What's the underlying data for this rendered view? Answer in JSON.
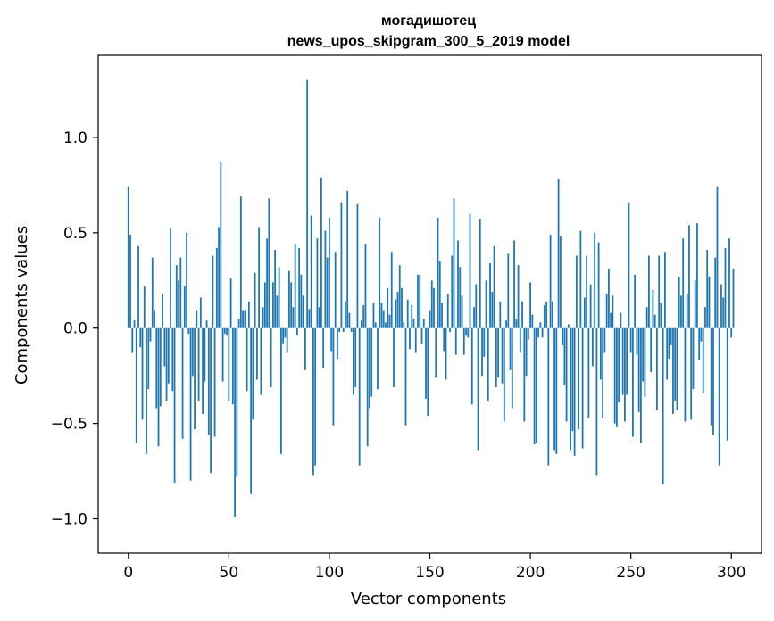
{
  "chart_data": {
    "type": "bar",
    "title": "могадишотец",
    "subtitle": "news_upos_skipgram_300_5_2019 model",
    "xlabel": "Vector components",
    "ylabel": "Components values",
    "xlim": [
      -15,
      315
    ],
    "ylim": [
      -1.18,
      1.43
    ],
    "xticks": [
      0,
      50,
      100,
      150,
      200,
      250,
      300
    ],
    "xtick_labels": [
      "0",
      "50",
      "100",
      "150",
      "200",
      "250",
      "300"
    ],
    "yticks": [
      -1.0,
      -0.5,
      0.0,
      0.5,
      1.0
    ],
    "ytick_labels": [
      "−1.0",
      "−0.5",
      "0.0",
      "0.5",
      "1.0"
    ],
    "grid": false,
    "bar_color": "#1f77b4",
    "values": [
      0.74,
      0.49,
      -0.13,
      0.04,
      -0.6,
      0.43,
      -0.1,
      -0.48,
      0.22,
      -0.66,
      -0.32,
      -0.07,
      0.37,
      0.09,
      -0.42,
      -0.62,
      -0.41,
      0.18,
      -0.2,
      -0.38,
      -0.29,
      0.52,
      -0.33,
      -0.81,
      0.33,
      0.25,
      0.37,
      -0.58,
      0.22,
      0.5,
      -0.03,
      -0.8,
      -0.25,
      -0.53,
      0.09,
      -0.38,
      0.16,
      -0.45,
      -0.28,
      0.04,
      -0.56,
      -0.76,
      0.38,
      -0.57,
      0.42,
      0.53,
      0.87,
      -0.28,
      -0.03,
      -0.04,
      -0.38,
      0.26,
      -0.4,
      -0.99,
      -0.78,
      0.05,
      0.69,
      0.09,
      0.09,
      -0.33,
      0.14,
      -0.87,
      -0.48,
      0.29,
      -0.27,
      0.53,
      -0.35,
      0.11,
      0.24,
      0.47,
      0.68,
      -0.31,
      0.24,
      0.41,
      0.17,
      0.32,
      -0.66,
      -0.08,
      -0.05,
      -0.13,
      0.3,
      0.24,
      0.11,
      0.44,
      -0.04,
      0.42,
      0.28,
      0.17,
      -0.22,
      1.3,
      0.1,
      0.59,
      -0.77,
      -0.72,
      0.47,
      0.11,
      0.79,
      -0.21,
      0.51,
      0.37,
      0.58,
      -0.12,
      -0.51,
      0.4,
      -0.16,
      -0.02,
      0.66,
      -0.02,
      0.14,
      0.72,
      0.08,
      -0.02,
      -0.35,
      -0.31,
      0.65,
      -0.72,
      0.04,
      0.12,
      0.44,
      -0.62,
      -0.42,
      -0.36,
      0.13,
      0.03,
      -0.32,
      0.58,
      0.13,
      0.09,
      0.03,
      0.21,
      0.07,
      0.4,
      -0.31,
      0.15,
      0.19,
      0.33,
      0.21,
      0.03,
      -0.51,
      0.15,
      -0.11,
      0.12,
      0.05,
      -0.13,
      0.28,
      0.28,
      -0.08,
      0.05,
      -0.37,
      -0.46,
      0.09,
      0.25,
      0.21,
      -0.26,
      0.58,
      0.35,
      0.13,
      -0.12,
      -0.27,
      0.18,
      -0.02,
      0.38,
      0.68,
      -0.14,
      0.46,
      0.32,
      0.17,
      -0.14,
      -0.04,
      -0.05,
      0.6,
      -0.4,
      0.11,
      0.23,
      -0.64,
      0.57,
      -0.25,
      -0.15,
      0.25,
      -0.38,
      0.34,
      0.19,
      0.43,
      -0.31,
      -0.26,
      0.14,
      -0.29,
      -0.49,
      0.04,
      0.39,
      -0.22,
      -0.42,
      0.46,
      0.05,
      0.33,
      -0.13,
      0.14,
      -0.49,
      -0.25,
      -0.06,
      0.24,
      0.07,
      -0.61,
      -0.6,
      -0.05,
      0.03,
      -0.05,
      0.12,
      0.14,
      -0.72,
      0.49,
      0.14,
      -0.64,
      -0.66,
      0.78,
      0.48,
      -0.09,
      -0.3,
      -0.49,
      0.02,
      -0.64,
      -0.54,
      -0.67,
      0.38,
      -0.53,
      0.51,
      -0.63,
      0.16,
      0.38,
      -0.47,
      0.23,
      -0.2,
      0.5,
      -0.77,
      0.45,
      -0.27,
      -0.47,
      -0.13,
      0.18,
      0.31,
      0.08,
      0.17,
      -0.5,
      -0.52,
      -0.39,
      0.08,
      -0.35,
      -0.49,
      -0.35,
      0.66,
      -0.13,
      -0.57,
      0.28,
      -0.14,
      -0.44,
      -0.6,
      -0.28,
      -0.36,
      0.11,
      0.38,
      -0.23,
      0.2,
      0.07,
      -0.43,
      0.38,
      0.13,
      -0.82,
      0.4,
      -0.27,
      -0.16,
      -0.09,
      -0.45,
      -0.38,
      -0.43,
      0.27,
      0.17,
      0.47,
      -0.49,
      0.18,
      0.54,
      -0.48,
      -0.32,
      0.25,
      0.55,
      -0.17,
      -0.07,
      -0.34,
      0.11,
      0.41,
      0.27,
      -0.51,
      -0.56,
      0.37,
      0.74,
      -0.72,
      0.23,
      0.16,
      0.42,
      -0.59,
      0.47,
      -0.05,
      0.31
    ]
  }
}
